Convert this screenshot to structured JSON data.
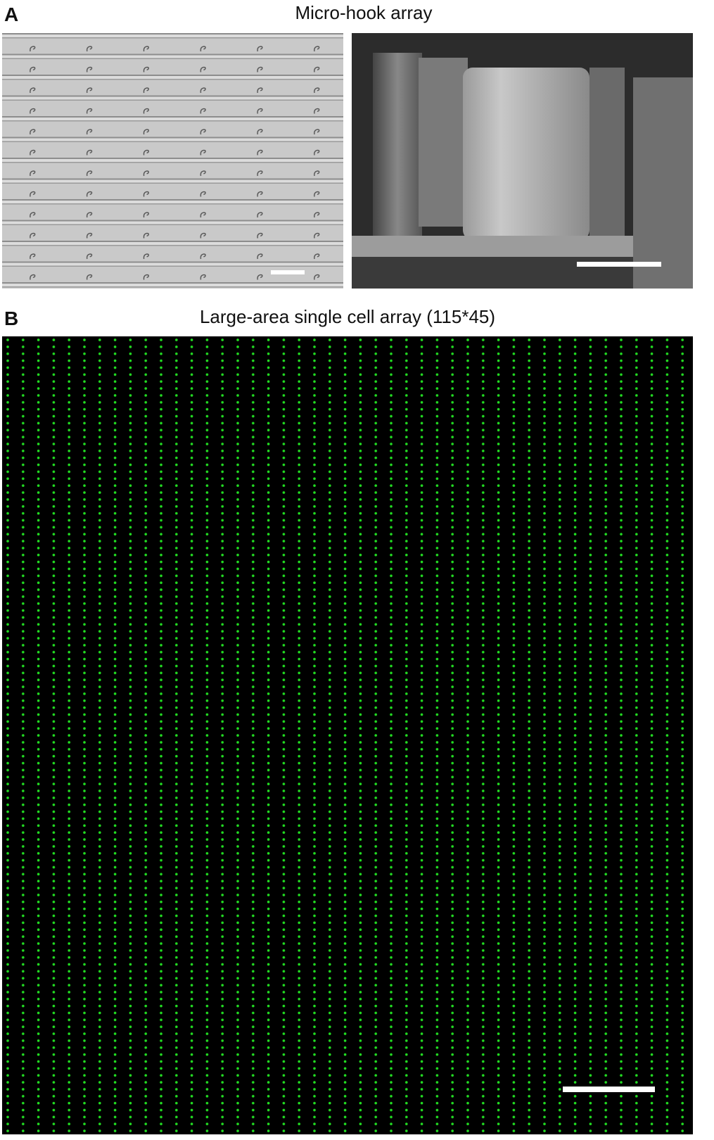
{
  "panels": [
    {
      "label": "A",
      "title": "Micro-hook array"
    },
    {
      "label": "B",
      "title": "Large-area single cell array (115*45)"
    }
  ]
}
